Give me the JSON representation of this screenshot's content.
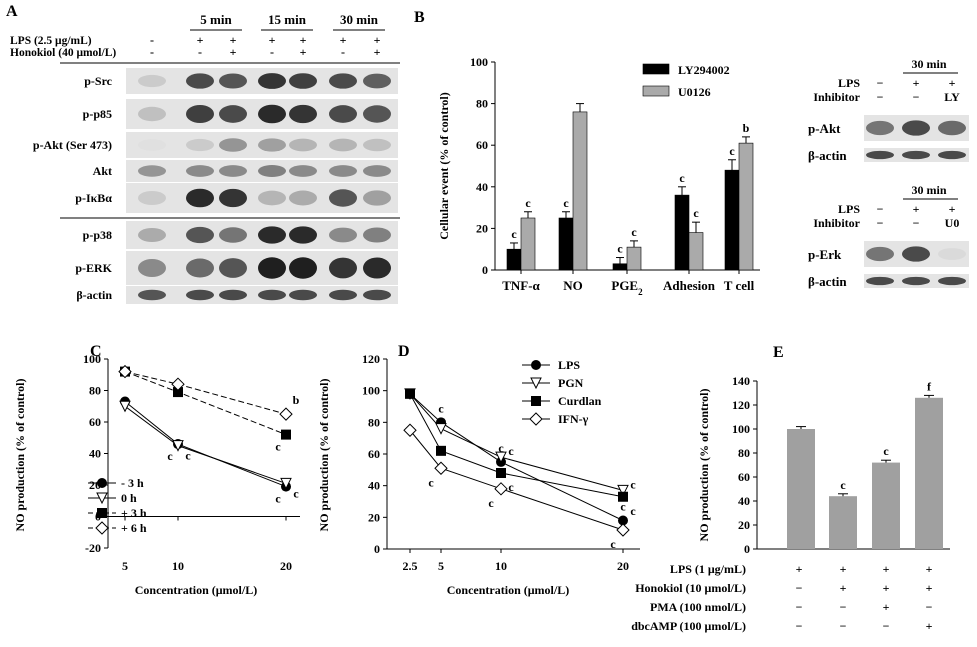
{
  "panel_a": {
    "letter": "A",
    "time_labels": [
      "5 min",
      "15 min",
      "30 min"
    ],
    "lps_label": "LPS (2.5 μg/mL)",
    "honokiol_label": "Honokiol (40 μmol/L)",
    "lps_signs": [
      "-",
      "+",
      "+",
      "+",
      "+",
      "+",
      "+"
    ],
    "honokiol_signs": [
      "-",
      "-",
      "+",
      "-",
      "+",
      "-",
      "+"
    ],
    "blot_labels": [
      "p-Src",
      "p-p85",
      "p-Akt (Ser 473)",
      "Akt",
      "p-IκBα",
      "p-p38",
      "p-ERK",
      "β-actin"
    ],
    "blot_intensity": [
      [
        0.15,
        0.75,
        0.7,
        0.85,
        0.8,
        0.75,
        0.65
      ],
      [
        0.2,
        0.8,
        0.75,
        0.9,
        0.85,
        0.75,
        0.7
      ],
      [
        0.05,
        0.15,
        0.4,
        0.35,
        0.25,
        0.25,
        0.2
      ],
      [
        0.4,
        0.45,
        0.45,
        0.5,
        0.45,
        0.45,
        0.45
      ],
      [
        0.15,
        0.9,
        0.85,
        0.25,
        0.3,
        0.7,
        0.35
      ],
      [
        0.3,
        0.7,
        0.55,
        0.9,
        0.9,
        0.45,
        0.5
      ],
      [
        0.45,
        0.6,
        0.7,
        0.95,
        0.95,
        0.85,
        0.9
      ],
      [
        0.7,
        0.75,
        0.75,
        0.75,
        0.75,
        0.75,
        0.75
      ]
    ]
  },
  "panel_b_inset": {
    "top": {
      "time": "30 min",
      "row1_label": "LPS",
      "row1_signs": [
        "−",
        "+",
        "+"
      ],
      "row2_label": "Inhibitor",
      "row2_signs": [
        "−",
        "−",
        "LY"
      ],
      "blot_labels": [
        "p-Akt",
        "β-actin"
      ],
      "blot_intensity": [
        [
          0.55,
          0.75,
          0.6
        ],
        [
          0.75,
          0.75,
          0.75
        ]
      ]
    },
    "bottom": {
      "time": "30 min",
      "row1_label": "LPS",
      "row1_signs": [
        "−",
        "+",
        "+"
      ],
      "row2_label": "Inhibitor",
      "row2_signs": [
        "−",
        "−",
        "U0"
      ],
      "blot_labels": [
        "p-Erk",
        "β-actin"
      ],
      "blot_intensity": [
        [
          0.55,
          0.75,
          0.08
        ],
        [
          0.75,
          0.75,
          0.75
        ]
      ]
    }
  },
  "chart_data": [
    {
      "panel": "B",
      "type": "bar",
      "ylabel": "Cellular event (% of control)",
      "ylim": [
        0,
        100
      ],
      "yticks": [
        0,
        20,
        40,
        60,
        80,
        100
      ],
      "categories": [
        "TNF-α",
        "NO",
        "PGE",
        "Adhesion",
        "T cell"
      ],
      "category_subscripts": [
        "",
        "",
        "2",
        "",
        ""
      ],
      "series": [
        {
          "name": "LY294002",
          "color": "#000000",
          "values": [
            10,
            25,
            3,
            36,
            48
          ],
          "errors": [
            3,
            3,
            3,
            4,
            5
          ],
          "labels": [
            "c",
            "c",
            "c",
            "c",
            "c"
          ]
        },
        {
          "name": "U0126",
          "color": "#aaaaaa",
          "values": [
            25,
            76,
            11,
            18,
            61
          ],
          "errors": [
            3,
            4,
            3,
            5,
            3
          ],
          "labels": [
            "c",
            "",
            "c",
            "c",
            "b"
          ]
        }
      ],
      "legend_position": "top-right"
    },
    {
      "panel": "C",
      "type": "line",
      "ylabel": "NO production (% of control)",
      "xlabel": "Concentration (μmol/L)",
      "ylim": [
        -20,
        100
      ],
      "yticks": [
        -20,
        0,
        20,
        40,
        60,
        80,
        100
      ],
      "x": [
        5,
        10,
        20
      ],
      "xticks": [
        "5",
        "10",
        "20"
      ],
      "series": [
        {
          "name": "-  3 h",
          "marker": "circle-filled",
          "dash": false,
          "values": [
            73,
            46,
            19
          ],
          "labels": [
            "",
            "c",
            "c"
          ]
        },
        {
          "name": "0 h",
          "marker": "triangle-open",
          "dash": false,
          "values": [
            70,
            45,
            21
          ],
          "labels": [
            "",
            "c",
            "c"
          ]
        },
        {
          "name": "+ 3 h",
          "marker": "square-filled",
          "dash": true,
          "values": [
            92,
            79,
            52
          ],
          "labels": [
            "",
            "",
            "c"
          ]
        },
        {
          "name": "+ 6 h",
          "marker": "diamond-open",
          "dash": true,
          "values": [
            92,
            84,
            65
          ],
          "labels": [
            "",
            "",
            "b"
          ]
        }
      ],
      "legend_position": "bottom-left"
    },
    {
      "panel": "D",
      "type": "line",
      "ylabel": "NO production (% of control)",
      "xlabel": "Concentration (μmol/L)",
      "ylim": [
        0,
        120
      ],
      "yticks": [
        0,
        20,
        40,
        60,
        80,
        100,
        120
      ],
      "x": [
        2.5,
        5,
        10,
        20
      ],
      "xticks": [
        "2.5",
        "5",
        "10",
        "20"
      ],
      "series": [
        {
          "name": "LPS",
          "marker": "circle-filled",
          "values": [
            98,
            80,
            55,
            18
          ],
          "labels": [
            "",
            "c",
            "c",
            "c"
          ]
        },
        {
          "name": "PGN",
          "marker": "triangle-open",
          "values": [
            98,
            76,
            58,
            37
          ],
          "labels": [
            "",
            "",
            "c",
            "c"
          ]
        },
        {
          "name": "Curdlan",
          "marker": "square-filled",
          "values": [
            98,
            62,
            48,
            33
          ],
          "labels": [
            "",
            "",
            "c",
            "c"
          ]
        },
        {
          "name": "IFN-γ",
          "marker": "diamond-open",
          "values": [
            75,
            51,
            38,
            12
          ],
          "labels": [
            "",
            "c",
            "c",
            "c"
          ]
        }
      ],
      "legend_position": "top-right"
    },
    {
      "panel": "E",
      "type": "bar",
      "ylabel": "NO production (% of control)",
      "ylim": [
        0,
        140
      ],
      "yticks": [
        0,
        20,
        40,
        60,
        80,
        100,
        120,
        140
      ],
      "values": [
        100,
        44,
        72,
        126
      ],
      "errors": [
        2,
        2,
        2,
        2
      ],
      "labels": [
        "",
        "c",
        "c",
        "f"
      ],
      "bar_color": "#a0a0a0",
      "conditions": [
        {
          "label": "LPS (1 μg/mL)",
          "signs": [
            "+",
            "+",
            "+",
            "+"
          ]
        },
        {
          "label": "Honokiol (10 μmol/L)",
          "signs": [
            "−",
            "+",
            "+",
            "+"
          ]
        },
        {
          "label": "PMA (100 nmol/L)",
          "signs": [
            "−",
            "−",
            "+",
            "−"
          ]
        },
        {
          "label": "dbcAMP (100 μmol/L)",
          "signs": [
            "−",
            "−",
            "−",
            "+"
          ]
        }
      ]
    }
  ]
}
